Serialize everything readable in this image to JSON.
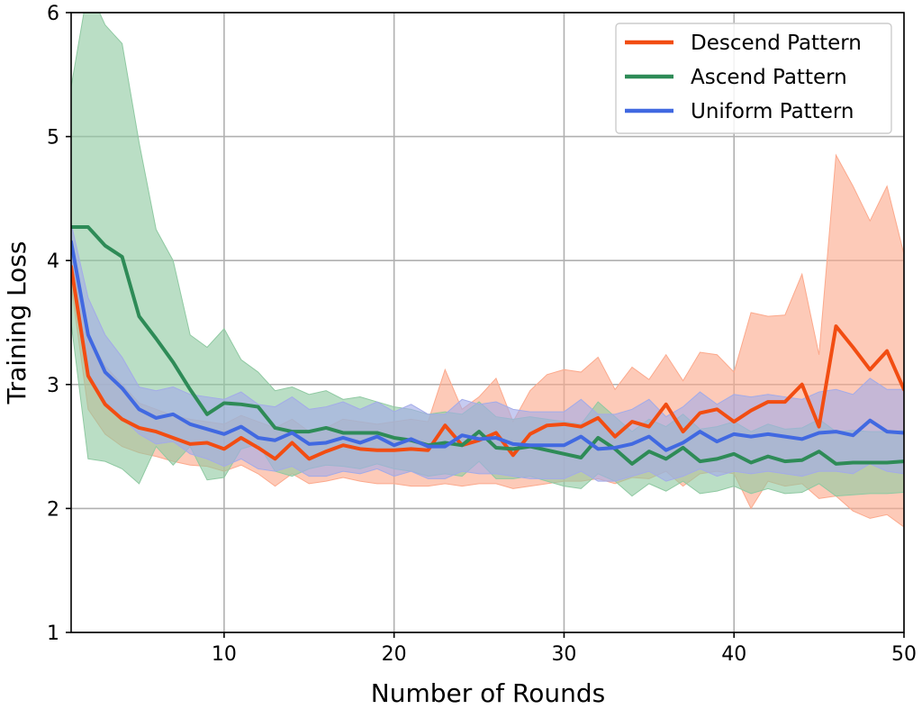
{
  "chart_data": {
    "type": "line",
    "xlabel": "Number of Rounds",
    "ylabel": "Training Loss",
    "xlim": [
      1,
      50
    ],
    "ylim": [
      1,
      6
    ],
    "xticks": [
      10,
      20,
      30,
      40,
      50
    ],
    "yticks": [
      1,
      2,
      3,
      4,
      5,
      6
    ],
    "grid": true,
    "legend_position": "top-right",
    "x": [
      1,
      2,
      3,
      4,
      5,
      6,
      7,
      8,
      9,
      10,
      11,
      12,
      13,
      14,
      15,
      16,
      17,
      18,
      19,
      20,
      21,
      22,
      23,
      24,
      25,
      26,
      27,
      28,
      29,
      30,
      31,
      32,
      33,
      34,
      35,
      36,
      37,
      38,
      39,
      40,
      41,
      42,
      43,
      44,
      45,
      46,
      47,
      48,
      49,
      50
    ],
    "series": [
      {
        "name": "Descend Pattern",
        "color": "#f24d12",
        "band_color": "#fca98c",
        "values": [
          3.95,
          3.07,
          2.84,
          2.72,
          2.65,
          2.62,
          2.57,
          2.52,
          2.53,
          2.48,
          2.57,
          2.49,
          2.4,
          2.53,
          2.4,
          2.46,
          2.51,
          2.48,
          2.47,
          2.47,
          2.48,
          2.47,
          2.67,
          2.51,
          2.55,
          2.61,
          2.43,
          2.6,
          2.67,
          2.68,
          2.66,
          2.73,
          2.58,
          2.7,
          2.66,
          2.84,
          2.62,
          2.77,
          2.8,
          2.7,
          2.79,
          2.86,
          2.86,
          3.0,
          2.66,
          3.47,
          3.3,
          3.12,
          3.27,
          2.96
        ],
        "upper": [
          4.1,
          3.4,
          3.15,
          3.0,
          2.85,
          2.8,
          2.75,
          2.72,
          2.7,
          2.68,
          2.75,
          2.7,
          2.65,
          2.72,
          2.62,
          2.65,
          2.72,
          2.7,
          2.68,
          2.7,
          2.72,
          2.7,
          3.12,
          2.8,
          2.9,
          3.05,
          2.7,
          2.95,
          3.08,
          3.12,
          3.1,
          3.22,
          2.96,
          3.14,
          3.04,
          3.24,
          3.03,
          3.26,
          3.24,
          3.1,
          3.58,
          3.55,
          3.56,
          3.89,
          3.24,
          4.85,
          4.6,
          4.32,
          4.6,
          4.05
        ],
        "lower": [
          3.8,
          2.8,
          2.6,
          2.5,
          2.45,
          2.42,
          2.38,
          2.35,
          2.34,
          2.3,
          2.35,
          2.28,
          2.18,
          2.28,
          2.2,
          2.22,
          2.25,
          2.22,
          2.2,
          2.2,
          2.18,
          2.18,
          2.2,
          2.18,
          2.2,
          2.2,
          2.16,
          2.18,
          2.2,
          2.22,
          2.22,
          2.24,
          2.2,
          2.25,
          2.24,
          2.3,
          2.18,
          2.28,
          2.3,
          2.28,
          2.0,
          2.22,
          2.18,
          2.2,
          2.08,
          2.1,
          1.98,
          1.92,
          1.95,
          1.85
        ]
      },
      {
        "name": "Ascend Pattern",
        "color": "#2e8b57",
        "band_color": "#8fc9a2",
        "values": [
          4.27,
          4.27,
          4.12,
          4.03,
          3.55,
          3.37,
          3.18,
          2.96,
          2.76,
          2.85,
          2.84,
          2.82,
          2.65,
          2.62,
          2.62,
          2.65,
          2.61,
          2.61,
          2.61,
          2.57,
          2.55,
          2.51,
          2.53,
          2.51,
          2.62,
          2.49,
          2.48,
          2.5,
          2.47,
          2.44,
          2.41,
          2.57,
          2.48,
          2.36,
          2.46,
          2.4,
          2.49,
          2.38,
          2.4,
          2.44,
          2.37,
          2.42,
          2.38,
          2.39,
          2.46,
          2.36,
          2.37,
          2.37,
          2.37,
          2.38
        ],
        "upper": [
          5.4,
          6.2,
          5.9,
          5.75,
          4.95,
          4.25,
          4.0,
          3.4,
          3.3,
          3.45,
          3.2,
          3.1,
          2.95,
          2.98,
          2.92,
          2.95,
          2.88,
          2.9,
          2.86,
          2.82,
          2.8,
          2.76,
          2.78,
          2.76,
          2.86,
          2.74,
          2.72,
          2.74,
          2.72,
          2.7,
          2.68,
          2.86,
          2.74,
          2.62,
          2.72,
          2.66,
          2.76,
          2.64,
          2.66,
          2.7,
          2.62,
          2.68,
          2.64,
          2.65,
          2.72,
          2.62,
          2.63,
          2.62,
          2.62,
          2.63
        ],
        "lower": [
          3.5,
          2.4,
          2.38,
          2.32,
          2.2,
          2.5,
          2.35,
          2.5,
          2.23,
          2.25,
          2.48,
          2.52,
          2.3,
          2.26,
          2.32,
          2.35,
          2.34,
          2.32,
          2.36,
          2.32,
          2.3,
          2.26,
          2.28,
          2.26,
          2.38,
          2.24,
          2.24,
          2.26,
          2.22,
          2.18,
          2.16,
          2.28,
          2.22,
          2.1,
          2.2,
          2.14,
          2.22,
          2.12,
          2.14,
          2.18,
          2.12,
          2.16,
          2.12,
          2.13,
          2.2,
          2.1,
          2.11,
          2.12,
          2.12,
          2.13
        ]
      },
      {
        "name": "Uniform Pattern",
        "color": "#4169e1",
        "band_color": "#a3abe8",
        "values": [
          4.15,
          3.4,
          3.1,
          2.97,
          2.8,
          2.73,
          2.76,
          2.68,
          2.64,
          2.6,
          2.66,
          2.57,
          2.55,
          2.61,
          2.52,
          2.53,
          2.57,
          2.53,
          2.58,
          2.51,
          2.56,
          2.5,
          2.5,
          2.59,
          2.56,
          2.57,
          2.52,
          2.51,
          2.51,
          2.51,
          2.58,
          2.48,
          2.49,
          2.52,
          2.58,
          2.47,
          2.53,
          2.62,
          2.54,
          2.6,
          2.58,
          2.6,
          2.58,
          2.56,
          2.61,
          2.62,
          2.59,
          2.71,
          2.62,
          2.61
        ],
        "upper": [
          4.3,
          3.7,
          3.4,
          3.22,
          2.98,
          2.95,
          2.98,
          2.92,
          2.9,
          2.88,
          2.94,
          2.84,
          2.82,
          2.9,
          2.8,
          2.82,
          2.86,
          2.8,
          2.86,
          2.78,
          2.84,
          2.76,
          2.76,
          2.88,
          2.84,
          2.86,
          2.8,
          2.78,
          2.78,
          2.78,
          2.88,
          2.76,
          2.76,
          2.8,
          2.88,
          2.74,
          2.82,
          2.94,
          2.84,
          2.92,
          2.9,
          2.92,
          2.9,
          2.88,
          2.94,
          2.96,
          2.92,
          3.05,
          2.96,
          2.96
        ],
        "lower": [
          4.0,
          3.1,
          2.84,
          2.73,
          2.6,
          2.52,
          2.54,
          2.44,
          2.4,
          2.34,
          2.4,
          2.32,
          2.3,
          2.34,
          2.26,
          2.26,
          2.3,
          2.28,
          2.32,
          2.26,
          2.3,
          2.24,
          2.24,
          2.3,
          2.28,
          2.28,
          2.26,
          2.24,
          2.24,
          2.24,
          2.3,
          2.22,
          2.22,
          2.26,
          2.3,
          2.22,
          2.26,
          2.32,
          2.26,
          2.3,
          2.28,
          2.3,
          2.28,
          2.26,
          2.3,
          2.3,
          2.28,
          2.36,
          2.3,
          2.28
        ]
      }
    ]
  }
}
